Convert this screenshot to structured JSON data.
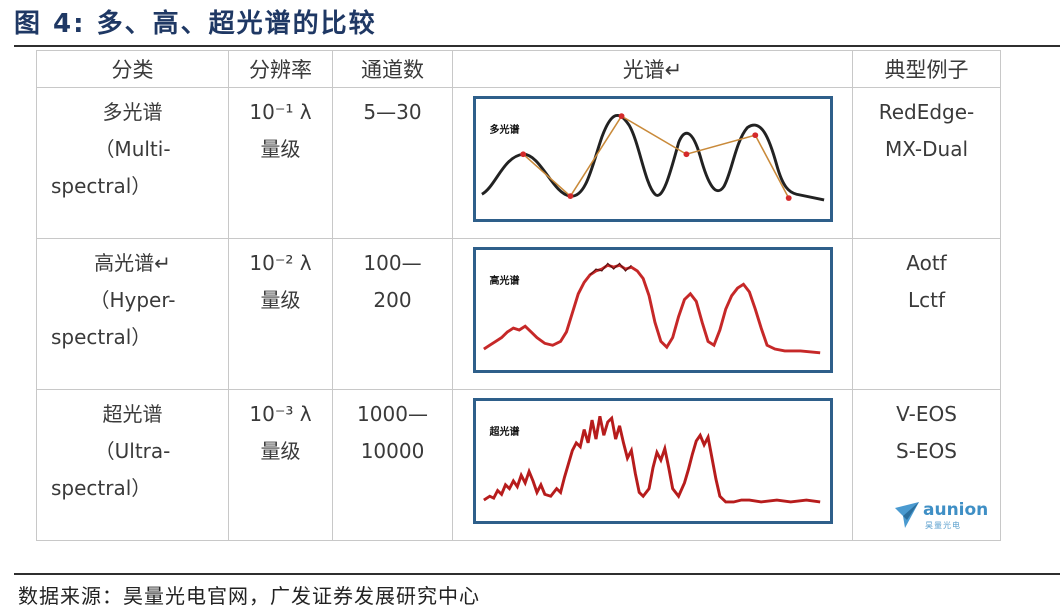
{
  "figure": {
    "title": "图 4:  多、高、超光谱的比较",
    "source": "数据来源：昊量光电官网，广发证券发展研究中心"
  },
  "table": {
    "headers": [
      "分类",
      "分辨率",
      "通道数",
      "光谱↵",
      "典型例子"
    ],
    "rows": [
      {
        "category_cn": "多光谱",
        "category_en_1": "（Multi-",
        "category_en_2": "spectral）",
        "resolution_1": "10⁻¹ λ",
        "resolution_2": "量级",
        "channels_1": "5—30",
        "channels_2": "",
        "spectrum_label": "多光谱",
        "example_1": "RedEdge-",
        "example_2": "MX-Dual"
      },
      {
        "category_cn": "高光谱↵",
        "category_en_1": "（Hyper-",
        "category_en_2": "spectral）",
        "resolution_1": "10⁻² λ",
        "resolution_2": "量级",
        "channels_1": "100—",
        "channels_2": "200",
        "spectrum_label": "高光谱",
        "example_1": "Aotf",
        "example_2": "Lctf"
      },
      {
        "category_cn": "超光谱",
        "category_en_1": "（Ultra-",
        "category_en_2": "spectral）",
        "resolution_1": "10⁻³ λ",
        "resolution_2": "量级",
        "channels_1": "1000—",
        "channels_2": "10000",
        "spectrum_label": "超光谱",
        "example_1": "V-EOS",
        "example_2": "S-EOS"
      }
    ]
  },
  "logo": {
    "name": "aunion",
    "subtitle": "昊量光电",
    "icon": "paper-plane-icon"
  },
  "colors": {
    "title": "#1f3864",
    "box_border": "#2e5f8a",
    "multi_curve": "#222222",
    "multi_sample_line": "#c98a3a",
    "sample_dot": "#d42a2a",
    "hyper_curve": "#c62828",
    "logo": "#3f8fc5"
  }
}
